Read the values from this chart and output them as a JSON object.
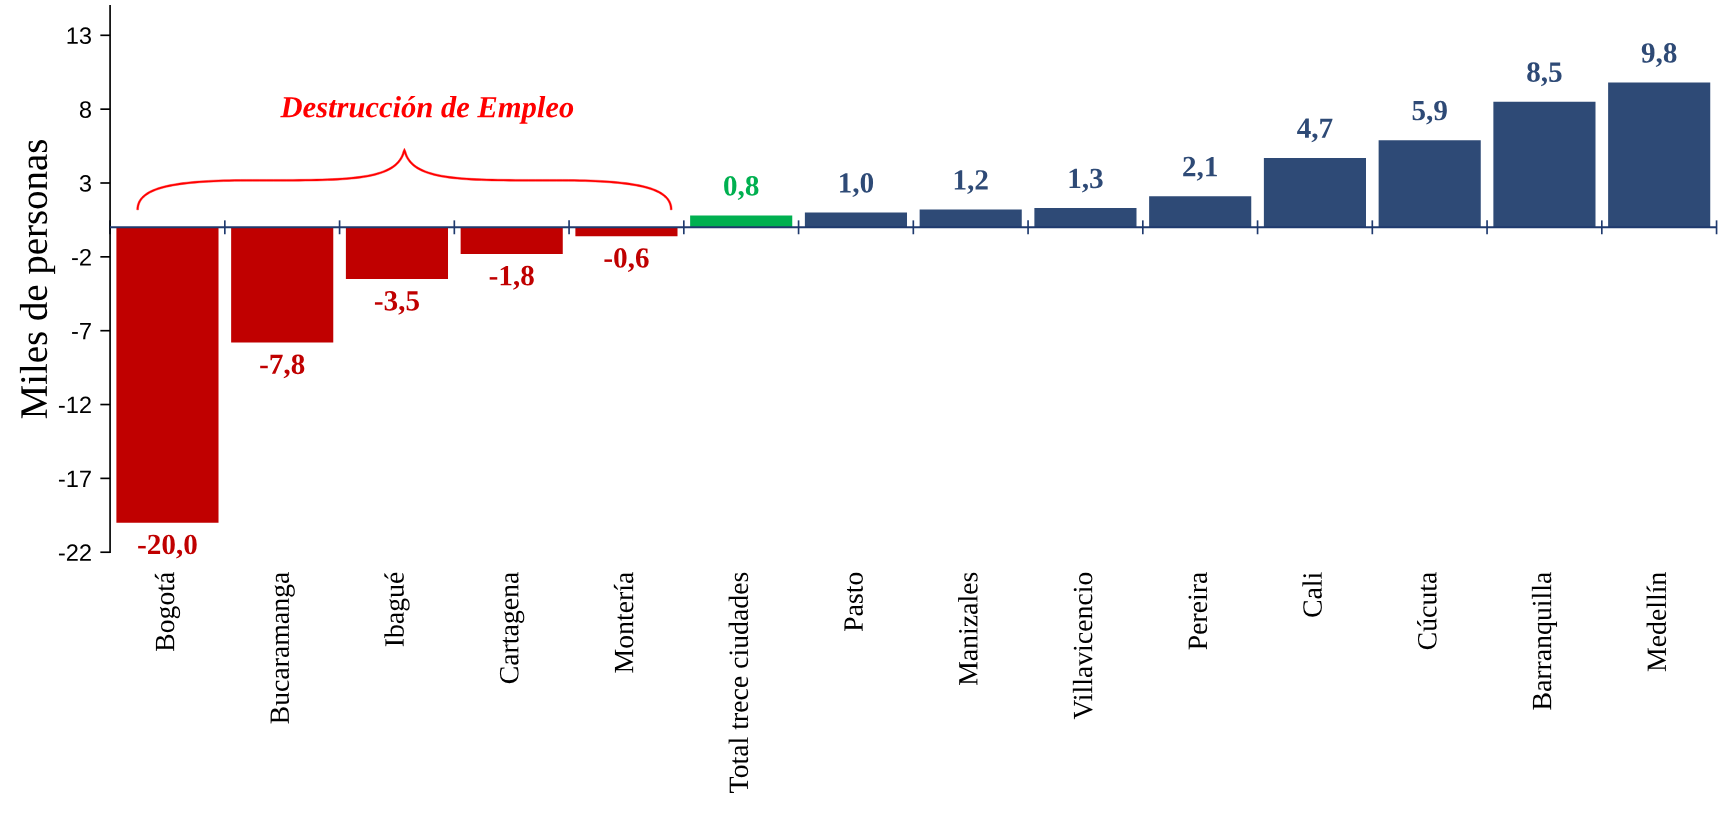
{
  "chart_data": {
    "type": "bar",
    "ylabel": "Miles de personas",
    "categories": [
      "Bogotá",
      "Bucaramanga",
      "Ibagué",
      "Cartagena",
      "Montería",
      "Total trece ciudades",
      "Pasto",
      "Manizales",
      "Villavicencio",
      "Pereira",
      "Cali",
      "Cúcuta",
      "Barranquilla",
      "Medellín"
    ],
    "values": [
      -20.0,
      -7.8,
      -3.5,
      -1.8,
      -0.6,
      0.8,
      1.0,
      1.2,
      1.3,
      2.1,
      4.7,
      5.9,
      8.5,
      9.8
    ],
    "colors": [
      "#c00000",
      "#c00000",
      "#c00000",
      "#c00000",
      "#c00000",
      "#00b050",
      "#2e4a76",
      "#2e4a76",
      "#2e4a76",
      "#2e4a76",
      "#2e4a76",
      "#2e4a76",
      "#2e4a76",
      "#2e4a76"
    ],
    "value_labels": [
      "-20,0",
      "-7,8",
      "-3,5",
      "-1,8",
      "-0,6",
      "0,8",
      "1,0",
      "1,2",
      "1,3",
      "2,1",
      "4,7",
      "5,9",
      "8,5",
      "9,8"
    ],
    "ylim": [
      -22,
      15
    ],
    "yticks": [
      -22,
      -17,
      -12,
      -7,
      -2,
      3,
      8,
      13
    ],
    "grid": false,
    "legend": false,
    "ref_lines": [
      {
        "axis": "y",
        "value": 0,
        "color": "#1f3a6e"
      }
    ],
    "annotations": [
      "Destrucción de Empleo"
    ]
  }
}
